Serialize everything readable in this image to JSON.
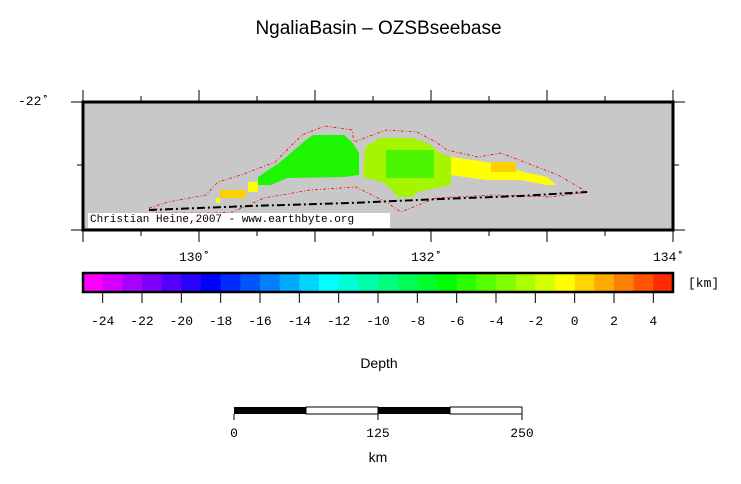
{
  "title": "NgaliaBasin – OZSBseebase",
  "map": {
    "lon_range": [
      129,
      134
    ],
    "lat_range": [
      -23,
      -22
    ],
    "lon_labels": [
      "130˚",
      "132˚",
      "134˚"
    ],
    "lat_labels": [
      "-22˚"
    ],
    "background_color": "#c8c8c8",
    "outline_color": "#ff0000",
    "credit": "Christian Heine,2007 - www.earthbyte.org"
  },
  "colorbar": {
    "range": [
      -25,
      5
    ],
    "step": 1,
    "unit_label": "[km]",
    "tick_labels": [
      "-24",
      "-22",
      "-20",
      "-18",
      "-16",
      "-14",
      "-12",
      "-10",
      "-8",
      "-6",
      "-4",
      "-2",
      "0",
      "2",
      "4"
    ],
    "title": "Depth",
    "palette": "rainbow magenta-to-red"
  },
  "scalebar": {
    "labels": [
      "0",
      "125",
      "250"
    ],
    "unit": "km"
  }
}
